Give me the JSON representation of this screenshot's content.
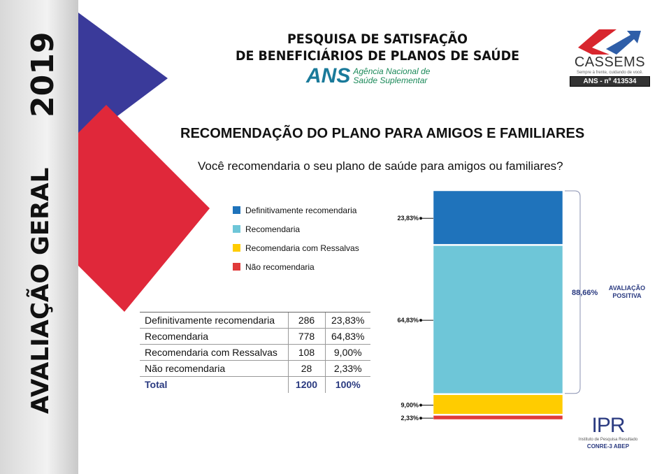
{
  "sidebar": {
    "section": "AVALIAÇÃO GERAL",
    "year": "2019"
  },
  "header": {
    "title_line1": "PESQUISA DE SATISFAÇÃO",
    "title_line2": "DE BENEFICIÁRIOS DE PLANOS DE SAÚDE",
    "ans_logo": {
      "mark": "ANS",
      "line1": "Agência Nacional de",
      "line2": "Saúde Suplementar"
    },
    "cassems_logo": {
      "name": "CASSEMS",
      "slogan": "Sempre à frente, cuidando de você.",
      "ans_number": "ANS - nº 413534"
    }
  },
  "heading": "RECOMENDAÇÃO DO PLANO PARA AMIGOS E FAMILIARES",
  "question": "Você recomendaria o seu plano de saúde para amigos ou familiares?",
  "table": {
    "rows": [
      [
        "Definitivamente recomendaria",
        "286",
        "23,83%"
      ],
      [
        "Recomendaria",
        "778",
        "64,83%"
      ],
      [
        "Recomendaria com Ressalvas",
        "108",
        "9,00%"
      ],
      [
        "Não recomendaria",
        "28",
        "2,33%"
      ]
    ],
    "total": [
      "Total",
      "1200",
      "100%"
    ]
  },
  "chart_data": {
    "type": "bar",
    "stacked": true,
    "orientation": "vertical",
    "categories": [
      "Definitivamente recomendaria",
      "Recomendaria",
      "Recomendaria com Ressalvas",
      "Não recomendaria"
    ],
    "values": [
      23.83,
      64.83,
      9.0,
      2.33
    ],
    "labels": [
      "23,83%",
      "64,83%",
      "9,00%",
      "2,33%"
    ],
    "colors": [
      "#1f73bb",
      "#6ec6d8",
      "#ffcc00",
      "#e03a3a"
    ],
    "legend_position": "left",
    "bracket": {
      "value": "88,66%",
      "label_line1": "AVALIAÇÃO",
      "label_line2": "POSITIVA"
    }
  },
  "footer": {
    "ipr_logo": {
      "mark": "IPR",
      "subtitle": "Instituto de Pesquisa Resultado",
      "partners": "CONRE-3   ABEP"
    }
  },
  "colors": {
    "blue_triangle": "#3a3a9a",
    "red_diamond": "#e0283a",
    "accent_text": "#2a3a80"
  }
}
